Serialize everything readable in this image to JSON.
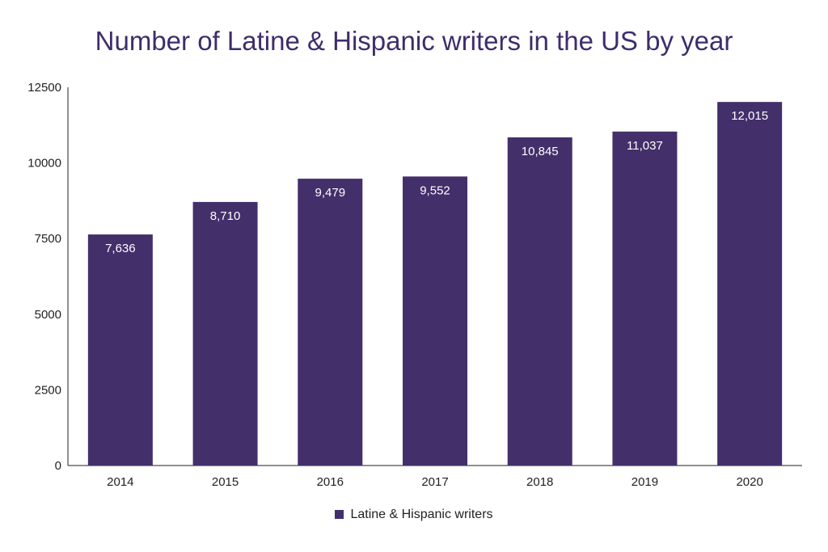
{
  "chart_data": {
    "type": "bar",
    "title": "Number of Latine & Hispanic writers in the US by year",
    "xlabel": "",
    "ylabel": "",
    "categories": [
      "2014",
      "2015",
      "2016",
      "2017",
      "2018",
      "2019",
      "2020"
    ],
    "series": [
      {
        "name": "Latine & Hispanic writers",
        "values": [
          7636,
          8710,
          9479,
          9552,
          10845,
          11037,
          12015
        ],
        "data_labels": [
          "7,636",
          "8,710",
          "9,479",
          "9,552",
          "10,845",
          "11,037",
          "12,015"
        ],
        "color": "#432f6a"
      }
    ],
    "ylim": [
      0,
      12500
    ],
    "yticks": [
      0,
      2500,
      5000,
      7500,
      10000,
      12500
    ],
    "ytick_labels": [
      "0",
      "2500",
      "5000",
      "7500",
      "10000",
      "12500"
    ],
    "grid": false,
    "legend_position": "bottom-center"
  },
  "colors": {
    "bar": "#432f6a",
    "title": "#3e2d6b",
    "axis": "#222222"
  }
}
